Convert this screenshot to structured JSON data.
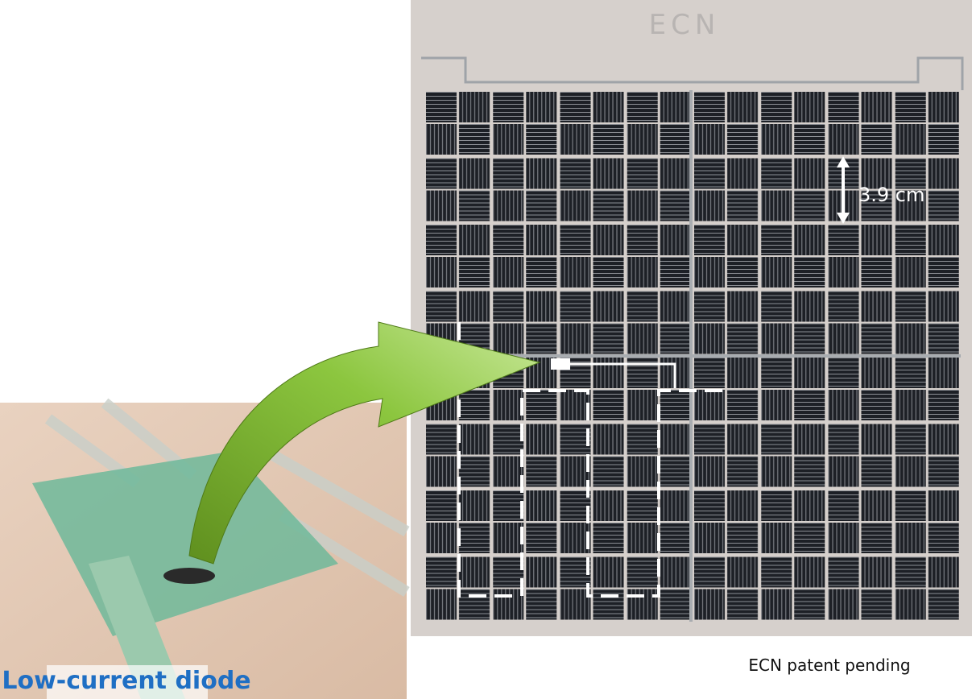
{
  "panel": {
    "logo": "ECN",
    "dimension_label": "3.9 cm",
    "caption": "ECN patent pending"
  },
  "inset": {
    "label": "Low-current diode"
  }
}
